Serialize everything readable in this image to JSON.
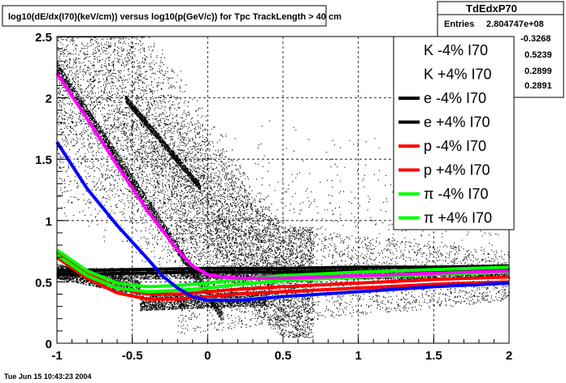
{
  "chart_data": {
    "type": "scatter",
    "title": "log10(dE/dx(I70)(keV/cm)) versus log10(p(GeV/c)) for Tpc TrackLength > 40 cm",
    "xlabel": "",
    "ylabel": "",
    "xlim": [
      -1,
      2
    ],
    "ylim": [
      0,
      2.5
    ],
    "x_ticks": [
      "-1",
      "-0.5",
      "0",
      "0.5",
      "1",
      "1.5",
      "2"
    ],
    "y_ticks": [
      "0",
      "0.5",
      "1",
      "1.5",
      "2",
      "2.5"
    ],
    "grid": true,
    "legend_position": "top-right",
    "background": "dense black scatter of tracks with electron, pion, kaon and proton bands",
    "series": [
      {
        "name": "K -4% I70",
        "color": "#ffffff",
        "x": [
          -1.0,
          -0.8,
          -0.6,
          -0.4,
          -0.3,
          -0.2,
          -0.1,
          0.0,
          0.2,
          0.5,
          1.0,
          1.5,
          2.0
        ],
        "y": [
          1.66,
          1.28,
          0.98,
          0.71,
          0.57,
          0.46,
          0.39,
          0.36,
          0.36,
          0.39,
          0.43,
          0.47,
          0.5
        ]
      },
      {
        "name": "K +4% I70",
        "color": "#ffffff",
        "x": [
          -1.0,
          -0.8,
          -0.6,
          -0.4,
          -0.3,
          -0.2,
          -0.1,
          0.0,
          0.2,
          0.5,
          1.0,
          1.5,
          2.0
        ],
        "y": [
          1.7,
          1.32,
          1.01,
          0.74,
          0.6,
          0.49,
          0.42,
          0.39,
          0.39,
          0.42,
          0.46,
          0.5,
          0.53
        ]
      },
      {
        "name": "e -4% I70",
        "color": "#000000",
        "x": [
          -1.0,
          -0.5,
          0.0,
          0.5,
          1.0,
          1.5,
          2.0
        ],
        "y": [
          0.56,
          0.57,
          0.58,
          0.58,
          0.59,
          0.59,
          0.6
        ]
      },
      {
        "name": "e +4% I70",
        "color": "#000000",
        "x": [
          -1.0,
          -0.5,
          0.0,
          0.5,
          1.0,
          1.5,
          2.0
        ],
        "y": [
          0.59,
          0.6,
          0.61,
          0.61,
          0.62,
          0.62,
          0.63
        ]
      },
      {
        "name": "p -4% I70",
        "color": "#ff0000",
        "x": [
          -1.0,
          -0.8,
          -0.6,
          -0.4,
          -0.2,
          0.0,
          0.2,
          0.5,
          1.0,
          1.5,
          2.0
        ],
        "y": [
          0.7,
          0.53,
          0.41,
          0.36,
          0.36,
          0.38,
          0.4,
          0.42,
          0.45,
          0.48,
          0.5
        ]
      },
      {
        "name": "p +4% I70",
        "color": "#ff0000",
        "x": [
          -1.0,
          -0.8,
          -0.6,
          -0.4,
          -0.2,
          0.0,
          0.2,
          0.5,
          1.0,
          1.5,
          2.0
        ],
        "y": [
          0.74,
          0.57,
          0.45,
          0.4,
          0.4,
          0.42,
          0.44,
          0.46,
          0.49,
          0.52,
          0.54
        ]
      },
      {
        "name": "π -4% I70",
        "color": "#00ff00",
        "x": [
          -1.0,
          -0.8,
          -0.6,
          -0.4,
          -0.2,
          0.0,
          0.2,
          0.5,
          1.0,
          1.5,
          2.0
        ],
        "y": [
          0.72,
          0.55,
          0.45,
          0.42,
          0.43,
          0.45,
          0.48,
          0.51,
          0.54,
          0.56,
          0.58
        ]
      },
      {
        "name": "π +4% I70",
        "color": "#00ff00",
        "x": [
          -1.0,
          -0.8,
          -0.6,
          -0.4,
          -0.2,
          0.0,
          0.2,
          0.5,
          1.0,
          1.5,
          2.0
        ],
        "y": [
          0.76,
          0.59,
          0.49,
          0.46,
          0.47,
          0.49,
          0.52,
          0.55,
          0.58,
          0.6,
          0.62
        ]
      },
      {
        "name": "",
        "color": "#ff00ff",
        "x": [
          -1.0,
          -0.8,
          -0.6,
          -0.4,
          -0.2,
          -0.1,
          0.0,
          0.1,
          0.2,
          0.5,
          1.0,
          1.5,
          2.0
        ],
        "y": [
          2.2,
          1.83,
          1.45,
          1.08,
          0.76,
          0.63,
          0.56,
          0.54,
          0.53,
          0.53,
          0.55,
          0.57,
          0.59
        ]
      },
      {
        "name": "",
        "color": "#0000ff",
        "x": [
          -1.0,
          -0.8,
          -0.6,
          -0.4,
          -0.3,
          -0.2,
          -0.1,
          0.0,
          0.2,
          0.5,
          1.0,
          1.5,
          2.0
        ],
        "y": [
          1.64,
          1.26,
          0.96,
          0.69,
          0.55,
          0.45,
          0.38,
          0.35,
          0.35,
          0.38,
          0.42,
          0.46,
          0.49
        ]
      }
    ]
  },
  "stats_box": {
    "title": "TdEdxP70",
    "entries_label": "Entries",
    "entries_value": "2.804747e+08",
    "values": [
      "-0.3268",
      "0.5239",
      "0.2899",
      "0.2891"
    ]
  },
  "footer": {
    "timestamp": "Tue Jun 15 10:43:23 2004"
  }
}
